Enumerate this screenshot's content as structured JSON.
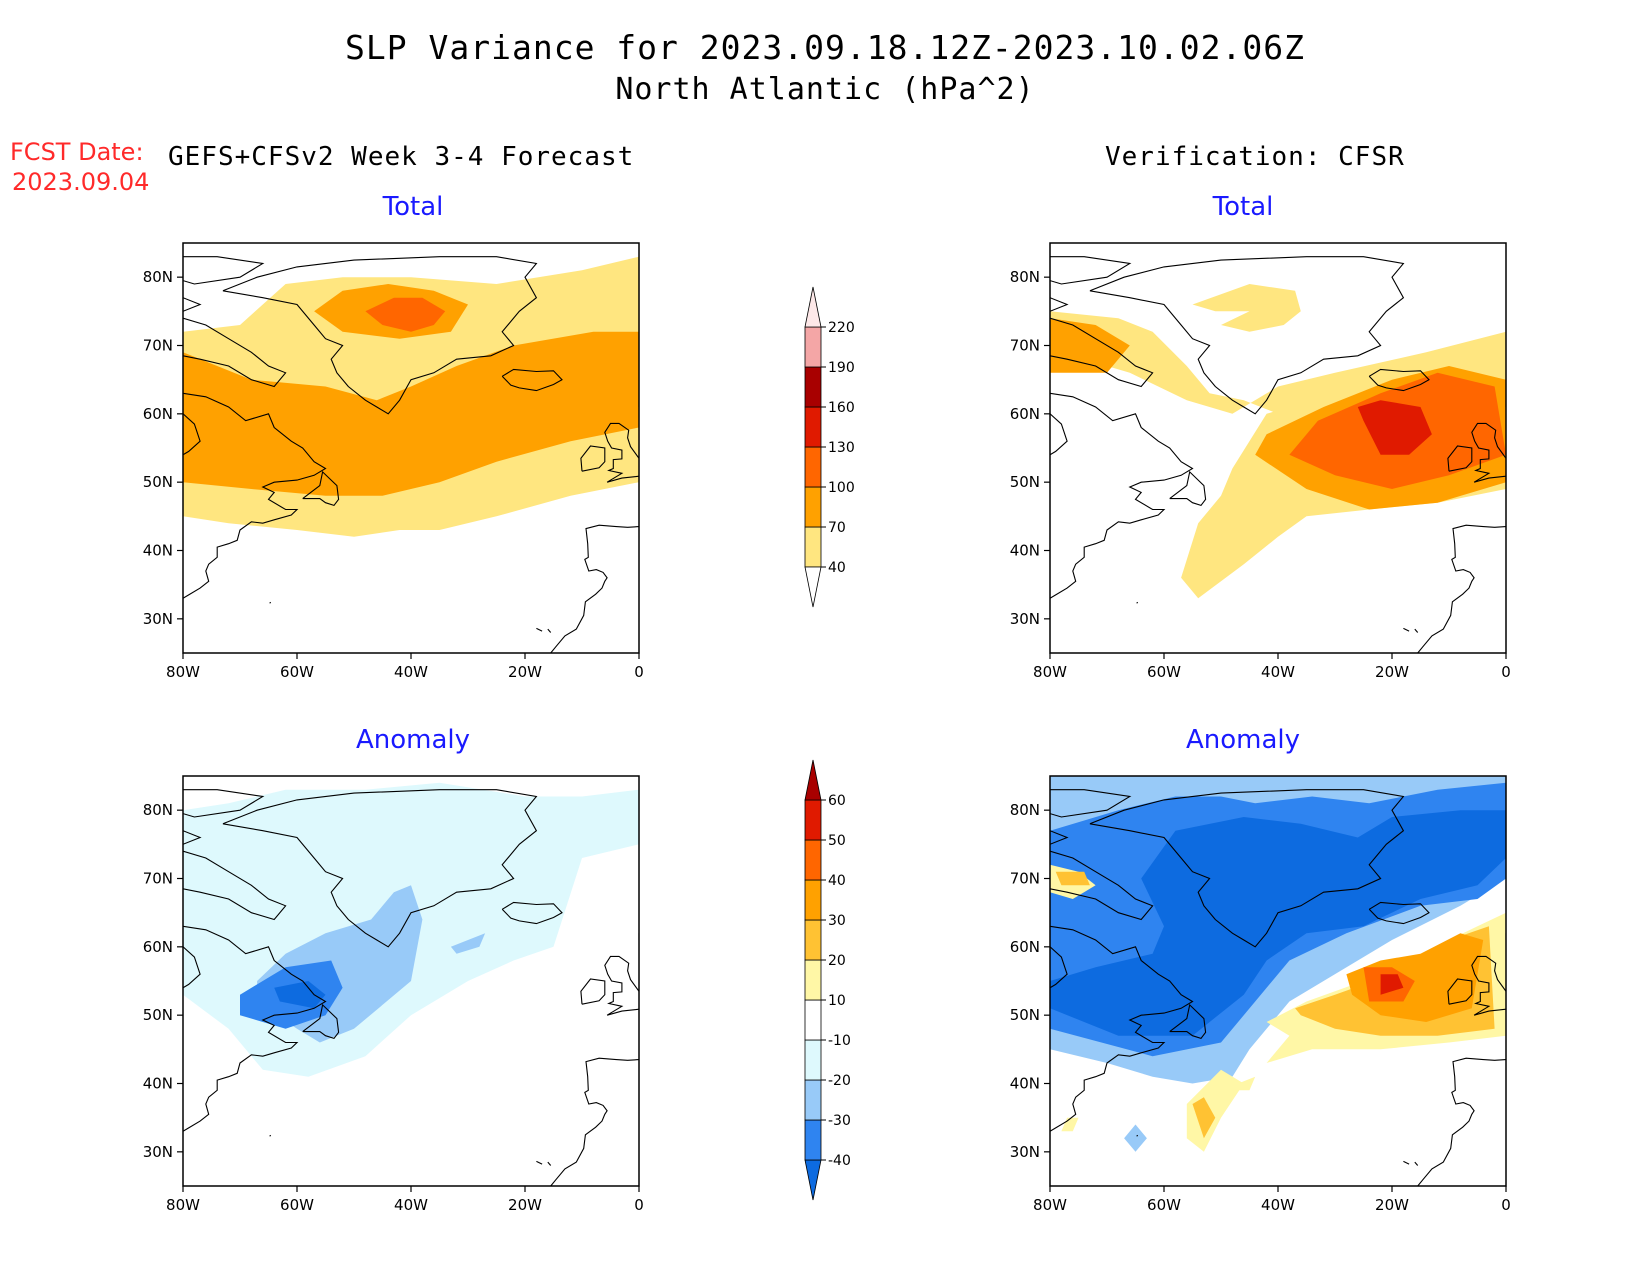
{
  "title": "SLP Variance for 2023.09.18.12Z-2023.10.02.06Z",
  "subtitle": "North Atlantic (hPa^2)",
  "forecast_label": "FCST Date:",
  "forecast_date": "2023.09.04",
  "left_column_title": "GEFS+CFSv2 Week 3-4 Forecast",
  "right_column_title": "Verification: CFSR",
  "panels": {
    "fc_total": {
      "title": "Total"
    },
    "vf_total": {
      "title": "Total"
    },
    "fc_anom": {
      "title": "Anomaly"
    },
    "vf_anom": {
      "title": "Anomaly"
    }
  },
  "chart_data": [
    {
      "type": "heatmap",
      "name": "GEFS+CFSv2 Week 3-4 Forecast - Total",
      "xlabel": "",
      "ylabel": "",
      "xlim": [
        -80,
        0
      ],
      "ylim": [
        25,
        85
      ],
      "x_ticks": [
        "80W",
        "60W",
        "40W",
        "20W",
        "0"
      ],
      "y_ticks": [
        "30N",
        "40N",
        "50N",
        "60N",
        "70N",
        "80N"
      ],
      "colorbar": "total",
      "regions": [
        {
          "level": 40,
          "lon": [
            -80,
            -72,
            -60,
            -50,
            -42,
            -35,
            -25,
            -12,
            0,
            0,
            -10,
            -25,
            -40,
            -52,
            -62,
            -70,
            -80
          ],
          "lat": [
            45,
            44,
            43,
            42,
            43,
            43,
            45,
            48,
            50,
            83,
            81,
            79,
            80,
            80,
            79,
            73,
            72
          ]
        },
        {
          "level": 70,
          "lon": [
            -80,
            -68,
            -55,
            -45,
            -35,
            -25,
            -12,
            0,
            0,
            -8,
            -22,
            -32,
            -40,
            -46,
            -55,
            -68,
            -80
          ],
          "lat": [
            50,
            49,
            48,
            48,
            50,
            53,
            56,
            58,
            72,
            72,
            70,
            67,
            64,
            62,
            64,
            65,
            69
          ]
        },
        {
          "level": 70,
          "lon": [
            -57,
            -52,
            -44,
            -36,
            -30,
            -33,
            -42,
            -52
          ],
          "lat": [
            75,
            78,
            79,
            78,
            76,
            72,
            71,
            72
          ]
        },
        {
          "level": 100,
          "lon": [
            -48,
            -43,
            -38,
            -34,
            -36,
            -40,
            -45
          ],
          "lat": [
            75,
            77,
            77,
            75,
            73,
            72,
            73
          ]
        }
      ]
    },
    {
      "type": "heatmap",
      "name": "Verification: CFSR - Total",
      "xlabel": "",
      "ylabel": "",
      "xlim": [
        -80,
        0
      ],
      "ylim": [
        25,
        85
      ],
      "x_ticks": [
        "80W",
        "60W",
        "40W",
        "20W",
        "0"
      ],
      "y_ticks": [
        "30N",
        "40N",
        "50N",
        "60N",
        "70N",
        "80N"
      ],
      "colorbar": "total",
      "regions": [
        {
          "level": 40,
          "lon": [
            -80,
            -68,
            -62,
            -56,
            -52,
            -46,
            -40,
            -34,
            -20,
            -10,
            0,
            0,
            -12,
            -24,
            -34,
            -42,
            -48,
            -50,
            -54,
            -57,
            -54,
            -46,
            -40,
            -35,
            -24,
            -12,
            0,
            0,
            -14,
            -30,
            -40,
            -48,
            -56,
            -66,
            -74,
            -80
          ],
          "lat": [
            75,
            74,
            72,
            67,
            63,
            62,
            60,
            56,
            57,
            54,
            54,
            69,
            66,
            63,
            62,
            60,
            52,
            48,
            44,
            36,
            33,
            38,
            42,
            45,
            46,
            47,
            49,
            72,
            69,
            66,
            64,
            60,
            62,
            66,
            68,
            70
          ]
        },
        {
          "level": 40,
          "lon": [
            -55,
            -45,
            -37,
            -36,
            -39,
            -45,
            -50,
            -45,
            -51
          ],
          "lat": [
            76,
            79,
            78,
            75,
            73,
            72,
            73,
            75,
            75
          ]
        },
        {
          "level": 70,
          "lon": [
            -80,
            -72,
            -66,
            -70,
            -80
          ],
          "lat": [
            74,
            73,
            70,
            66,
            66
          ]
        },
        {
          "level": 70,
          "lon": [
            -44,
            -35,
            -24,
            -12,
            0,
            0,
            -10,
            -20,
            -32,
            -42
          ],
          "lat": [
            54,
            49,
            46,
            47,
            50,
            65,
            67,
            65,
            61,
            57
          ]
        },
        {
          "level": 100,
          "lon": [
            -38,
            -30,
            -20,
            -10,
            0,
            -2,
            -12,
            -22,
            -33
          ],
          "lat": [
            54,
            51,
            49,
            51,
            54,
            64,
            66,
            63,
            59
          ]
        },
        {
          "level": 130,
          "lon": [
            -25,
            -22,
            -17,
            -13,
            -15,
            -22,
            -26
          ],
          "lat": [
            59,
            54,
            54,
            57,
            61,
            62,
            61
          ]
        }
      ]
    },
    {
      "type": "heatmap",
      "name": "GEFS+CFSv2 Week 3-4 Forecast - Anomaly",
      "xlabel": "",
      "ylabel": "",
      "xlim": [
        -80,
        0
      ],
      "ylim": [
        25,
        85
      ],
      "x_ticks": [
        "80W",
        "60W",
        "40W",
        "20W",
        "0"
      ],
      "y_ticks": [
        "30N",
        "40N",
        "50N",
        "60N",
        "70N",
        "80N"
      ],
      "colorbar": "anomaly",
      "regions": [
        {
          "level": -10,
          "lon": [
            -80,
            -72,
            -66,
            -58,
            -48,
            -40,
            -30,
            -22,
            -15,
            -10,
            0,
            0,
            -10,
            -20,
            -35,
            -48,
            -62,
            -72,
            -80
          ],
          "lat": [
            53,
            48,
            42,
            41,
            44,
            50,
            55,
            58,
            60,
            73,
            75,
            83,
            82,
            82,
            84,
            83,
            83,
            81,
            80
          ]
        },
        {
          "level": -20,
          "lon": [
            -67,
            -62,
            -55,
            -47,
            -43,
            -40,
            -38,
            -40,
            -50,
            -56,
            -60,
            -67
          ],
          "lat": [
            55,
            59,
            62,
            64,
            68,
            69,
            64,
            55,
            48,
            46,
            48,
            52
          ]
        },
        {
          "level": -20,
          "lon": [
            -33,
            -30,
            -27,
            -28,
            -32
          ],
          "lat": [
            60,
            61,
            62,
            60,
            59
          ]
        },
        {
          "level": -30,
          "lon": [
            -70,
            -62,
            -54,
            -52,
            -55,
            -62,
            -70
          ],
          "lat": [
            53,
            57,
            58,
            54,
            50,
            48,
            50
          ]
        },
        {
          "level": -40,
          "lon": [
            -64,
            -58,
            -55,
            -57,
            -63
          ],
          "lat": [
            54,
            55,
            53,
            51,
            52
          ]
        }
      ]
    },
    {
      "type": "heatmap",
      "name": "Verification: CFSR - Anomaly",
      "xlabel": "",
      "ylabel": "",
      "xlim": [
        -80,
        0
      ],
      "ylim": [
        25,
        85
      ],
      "x_ticks": [
        "80W",
        "60W",
        "40W",
        "20W",
        "0"
      ],
      "y_ticks": [
        "30N",
        "40N",
        "50N",
        "60N",
        "70N",
        "80N"
      ],
      "colorbar": "anomaly",
      "regions": [
        {
          "level": -20,
          "lon": [
            -80,
            -70,
            -62,
            -55,
            -48,
            -45,
            -38,
            -20,
            -8,
            0,
            0,
            -80
          ],
          "lat": [
            45,
            43,
            41,
            40,
            41,
            45,
            52,
            61,
            66,
            70,
            85,
            85
          ]
        },
        {
          "level": -30,
          "lon": [
            -80,
            -62,
            -50,
            -44,
            -38,
            -28,
            -15,
            -5,
            0,
            0,
            -12,
            -24,
            -34,
            -44,
            -50,
            -58,
            -68,
            -80
          ],
          "lat": [
            48,
            44,
            46,
            52,
            58,
            62,
            66,
            67,
            70,
            84,
            83,
            81,
            82,
            81,
            82,
            82,
            80,
            77
          ]
        },
        {
          "level": -40,
          "lon": [
            -80,
            -68,
            -55,
            -46,
            -42,
            -35,
            -25,
            -15,
            -5,
            0,
            0,
            -8,
            -20,
            -26,
            -36,
            -46,
            -58,
            -64,
            -60,
            -62,
            -72,
            -80
          ],
          "lat": [
            51,
            47,
            47,
            53,
            58,
            62,
            63,
            67,
            69,
            73,
            80,
            80,
            79,
            76,
            78,
            79,
            77,
            70,
            63,
            59,
            57,
            55
          ]
        },
        {
          "level": 10,
          "lon": [
            -80,
            -75,
            -72,
            -76,
            -80
          ],
          "lat": [
            72,
            71,
            69,
            67,
            68
          ]
        },
        {
          "level": 20,
          "lon": [
            -79,
            -74,
            -73,
            -78
          ],
          "lat": [
            71,
            71,
            69,
            69
          ]
        },
        {
          "level": 10,
          "lon": [
            -42,
            -35,
            -25,
            -15,
            -5,
            0,
            0,
            -10,
            -22,
            -34,
            -42,
            -38
          ],
          "lat": [
            49,
            52,
            55,
            59,
            63,
            65,
            47,
            46,
            45,
            45,
            43,
            47
          ]
        },
        {
          "level": 20,
          "lon": [
            -37,
            -30,
            -20,
            -10,
            -3,
            -2,
            -12,
            -22,
            -30,
            -36
          ],
          "lat": [
            51,
            53,
            56,
            61,
            63,
            48,
            47,
            47,
            48,
            50
          ]
        },
        {
          "level": 30,
          "lon": [
            -28,
            -22,
            -15,
            -8,
            -4,
            -6,
            -14,
            -22,
            -27
          ],
          "lat": [
            56,
            58,
            59,
            62,
            61,
            51,
            49,
            50,
            53
          ]
        },
        {
          "level": 40,
          "lon": [
            -25,
            -20,
            -16,
            -18,
            -24
          ],
          "lat": [
            57,
            57,
            55,
            52,
            52
          ]
        },
        {
          "level": 50,
          "lon": [
            -22,
            -19,
            -18,
            -22
          ],
          "lat": [
            56,
            56,
            54,
            53
          ]
        },
        {
          "level": 10,
          "lon": [
            -56,
            -50,
            -46,
            -50,
            -53,
            -56
          ],
          "lat": [
            37,
            42,
            40,
            35,
            30,
            32
          ]
        },
        {
          "level": 20,
          "lon": [
            -55,
            -53,
            -51,
            -53
          ],
          "lat": [
            37,
            38,
            35,
            32
          ]
        },
        {
          "level": 10,
          "lon": [
            -47,
            -44,
            -45,
            -48
          ],
          "lat": [
            40,
            41,
            39,
            39
          ]
        },
        {
          "level": 10,
          "lon": [
            -77,
            -75,
            -76,
            -78
          ],
          "lat": [
            35,
            35,
            33,
            33
          ]
        },
        {
          "level": -20,
          "lon": [
            -67,
            -65,
            -63,
            -65
          ],
          "lat": [
            32,
            34,
            32,
            30
          ]
        }
      ]
    }
  ],
  "colorbars": {
    "total": {
      "labels": [
        "40",
        "70",
        "100",
        "130",
        "160",
        "190",
        "220"
      ],
      "colors": [
        "#ffe680",
        "#ffa100",
        "#ff6600",
        "#e01a00",
        "#a80000",
        "#f4a6a6",
        "#fde8e8"
      ]
    },
    "anomaly": {
      "labels": [
        "-40",
        "-30",
        "-20",
        "-10",
        "10",
        "20",
        "30",
        "40",
        "50",
        "60"
      ],
      "colors": [
        "#0d6be0",
        "#2f84f0",
        "#98caf8",
        "#def9fd",
        "#ffffff",
        "#fff7a6",
        "#ffc233",
        "#ffa100",
        "#ff6600",
        "#e01a00",
        "#a80000"
      ]
    }
  }
}
